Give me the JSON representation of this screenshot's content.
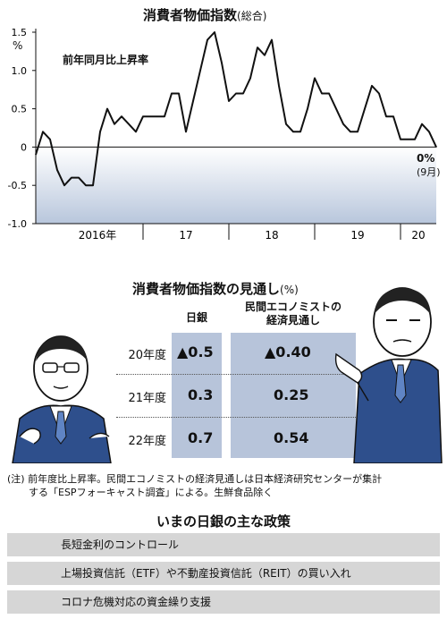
{
  "chart_data": {
    "type": "area",
    "title": "消費者物価指数",
    "title_suffix": "(総合)",
    "series": [
      {
        "name": "前年同月比上昇率",
        "values": [
          -0.1,
          0.2,
          0.1,
          -0.3,
          -0.5,
          -0.4,
          -0.4,
          -0.5,
          -0.5,
          0.2,
          0.5,
          0.3,
          0.4,
          0.3,
          0.2,
          0.4,
          0.4,
          0.4,
          0.4,
          0.7,
          0.7,
          0.2,
          0.6,
          1.0,
          1.4,
          1.5,
          1.1,
          0.6,
          0.7,
          0.7,
          0.9,
          1.3,
          1.2,
          1.4,
          0.8,
          0.3,
          0.2,
          0.2,
          0.5,
          0.9,
          0.7,
          0.7,
          0.5,
          0.3,
          0.2,
          0.2,
          0.5,
          0.8,
          0.7,
          0.4,
          0.4,
          0.1,
          0.1,
          0.1,
          0.3,
          0.2,
          0.0
        ]
      }
    ],
    "y_axis": {
      "ticks": [
        "1.5",
        "1.0",
        "0.5",
        "0",
        "-0.5",
        "-1.0"
      ],
      "unit": "%",
      "ylim": [
        -1.0,
        1.5
      ]
    },
    "x_axis": {
      "ticks": [
        "2016年",
        "17",
        "18",
        "19",
        "20"
      ]
    },
    "end_label": "0%",
    "end_sublabel": "(9月)",
    "grid": false,
    "negative_fill": "#b8c6dc"
  },
  "forecast": {
    "title": "消費者物価指数の見通し",
    "unit": "(%)",
    "col_boj": "日銀",
    "col_private_line1": "民間エコノミストの",
    "col_private_line2": "経済見通し",
    "rows": [
      {
        "year": "20年度",
        "boj": "▲0.5",
        "private": "▲0.40"
      },
      {
        "year": "21年度",
        "boj": "0.3",
        "private": "0.25"
      },
      {
        "year": "22年度",
        "boj": "0.7",
        "private": "0.54"
      }
    ],
    "note_line1": "(注) 前年度比上昇率。民間エコノミストの経済見通しは日本経済研究センターが集計",
    "note_line2": "する「ESPフォーキャスト調査」による。生鮮食品除く"
  },
  "policies": {
    "title": "いまの日銀の主な政策",
    "items": [
      "長短金利のコントロール",
      "上場投資信託（ETF）や不動産投資信託（REIT）の買い入れ",
      "コロナ危機対応の資金繰り支援"
    ]
  }
}
